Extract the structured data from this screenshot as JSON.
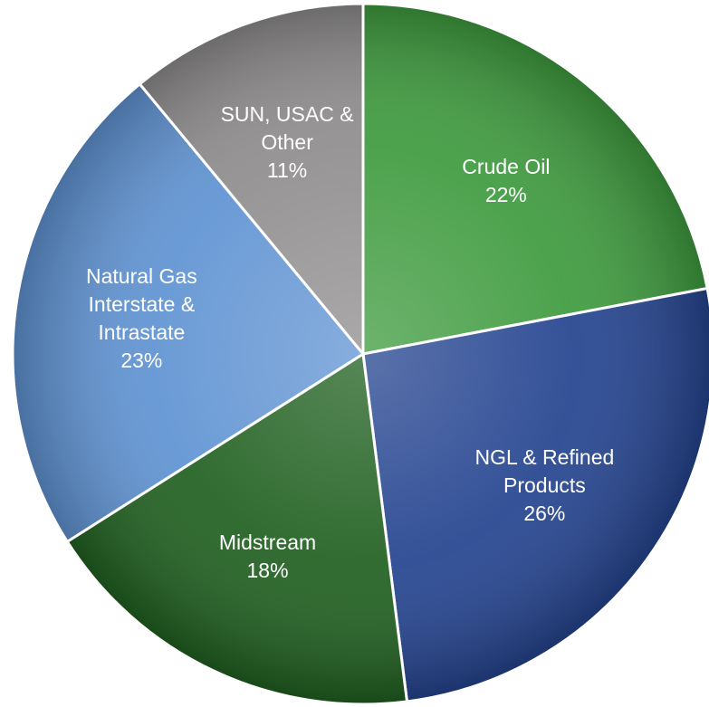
{
  "chart_data": {
    "type": "pie",
    "categories": [
      "Crude Oil",
      "NGL & Refined Products",
      "Midstream",
      "Natural Gas Interstate & Intrastate",
      "SUN, USAC & Other"
    ],
    "values": [
      22,
      26,
      18,
      23,
      11
    ],
    "value_labels": [
      "22%",
      "26%",
      "18%",
      "23%",
      "11%"
    ],
    "colors": [
      "#3d9a3d",
      "#23438f",
      "#1f5f1f",
      "#5e92d2",
      "#8e8c8c"
    ]
  }
}
